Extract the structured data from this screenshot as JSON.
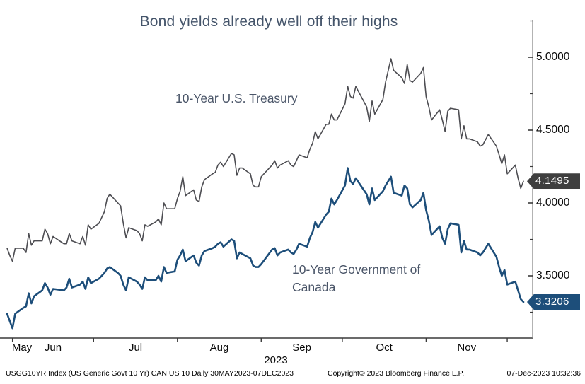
{
  "title": "Bond yields already well off their highs",
  "chart_data": {
    "type": "line",
    "title": "Bond yields already well off their highs",
    "x_range": {
      "start": "30MAY2023",
      "end": "07DEC2023",
      "days": 191
    },
    "xlabel": "2023",
    "ylabel": "",
    "ylim": [
      3.25,
      5.26
    ],
    "grid": false,
    "legend_position": "inline-annotations",
    "y_ticks_major": [
      {
        "value": 5.0,
        "label": "5.0000"
      },
      {
        "value": 4.5,
        "label": "4.5000"
      },
      {
        "value": 4.0,
        "label": "4.0000"
      },
      {
        "value": 3.5,
        "label": "3.5000"
      }
    ],
    "y_ticks_minor": [
      5.25,
      4.75,
      4.25,
      3.75,
      3.25
    ],
    "x_month_tick_days": [
      2,
      32,
      63,
      94,
      124,
      155,
      185
    ],
    "x_month_labels": [
      {
        "label": "May",
        "center_day": 5.5
      },
      {
        "label": "Jun",
        "center_day": 17
      },
      {
        "label": "Jul",
        "center_day": 47.5
      },
      {
        "label": "Aug",
        "center_day": 78.5
      },
      {
        "label": "Sep",
        "center_day": 109
      },
      {
        "label": "Oct",
        "center_day": 139.5
      },
      {
        "label": "Nov",
        "center_day": 170
      }
    ],
    "year_label": "2023",
    "series": [
      {
        "name": "10-Year U.S. Treasury",
        "color": "#4d4d52",
        "width": 1.6,
        "last_value": 4.1495,
        "last_value_label": "4.1495",
        "badge_color": "#3f3f3f",
        "points": [
          [
            0,
            3.69
          ],
          [
            1,
            3.64
          ],
          [
            2,
            3.6
          ],
          [
            3,
            3.69
          ],
          [
            6,
            3.69
          ],
          [
            7,
            3.66
          ],
          [
            8,
            3.79
          ],
          [
            9,
            3.71
          ],
          [
            10,
            3.74
          ],
          [
            13,
            3.74
          ],
          [
            14,
            3.82
          ],
          [
            15,
            3.79
          ],
          [
            16,
            3.72
          ],
          [
            17,
            3.77
          ],
          [
            21,
            3.72
          ],
          [
            22,
            3.72
          ],
          [
            23,
            3.79
          ],
          [
            24,
            3.74
          ],
          [
            27,
            3.72
          ],
          [
            28,
            3.77
          ],
          [
            29,
            3.71
          ],
          [
            30,
            3.85
          ],
          [
            31,
            3.82
          ],
          [
            34,
            3.86
          ],
          [
            36,
            3.94
          ],
          [
            37,
            4.03
          ],
          [
            38,
            4.06
          ],
          [
            41,
            4.0
          ],
          [
            42,
            3.98
          ],
          [
            43,
            3.86
          ],
          [
            44,
            3.76
          ],
          [
            45,
            3.83
          ],
          [
            48,
            3.81
          ],
          [
            49,
            3.79
          ],
          [
            50,
            3.74
          ],
          [
            51,
            3.85
          ],
          [
            52,
            3.84
          ],
          [
            55,
            3.87
          ],
          [
            56,
            3.89
          ],
          [
            57,
            3.85
          ],
          [
            58,
            4.0
          ],
          [
            59,
            3.96
          ],
          [
            62,
            3.96
          ],
          [
            63,
            4.03
          ],
          [
            64,
            4.08
          ],
          [
            65,
            4.18
          ],
          [
            66,
            4.05
          ],
          [
            69,
            4.09
          ],
          [
            70,
            4.02
          ],
          [
            71,
            4.01
          ],
          [
            72,
            4.11
          ],
          [
            73,
            4.16
          ],
          [
            76,
            4.2
          ],
          [
            77,
            4.21
          ],
          [
            78,
            4.26
          ],
          [
            79,
            4.28
          ],
          [
            80,
            4.25
          ],
          [
            83,
            4.34
          ],
          [
            84,
            4.33
          ],
          [
            85,
            4.19
          ],
          [
            86,
            4.24
          ],
          [
            87,
            4.24
          ],
          [
            90,
            4.2
          ],
          [
            91,
            4.12
          ],
          [
            92,
            4.11
          ],
          [
            93,
            4.11
          ],
          [
            94,
            4.18
          ],
          [
            98,
            4.26
          ],
          [
            99,
            4.29
          ],
          [
            100,
            4.24
          ],
          [
            101,
            4.26
          ],
          [
            104,
            4.29
          ],
          [
            105,
            4.26
          ],
          [
            106,
            4.25
          ],
          [
            107,
            4.29
          ],
          [
            108,
            4.33
          ],
          [
            111,
            4.31
          ],
          [
            112,
            4.37
          ],
          [
            113,
            4.41
          ],
          [
            114,
            4.49
          ],
          [
            115,
            4.44
          ],
          [
            118,
            4.54
          ],
          [
            119,
            4.54
          ],
          [
            120,
            4.61
          ],
          [
            121,
            4.57
          ],
          [
            122,
            4.57
          ],
          [
            125,
            4.68
          ],
          [
            126,
            4.8
          ],
          [
            127,
            4.73
          ],
          [
            128,
            4.72
          ],
          [
            129,
            4.8
          ],
          [
            133,
            4.66
          ],
          [
            134,
            4.56
          ],
          [
            135,
            4.7
          ],
          [
            136,
            4.61
          ],
          [
            139,
            4.71
          ],
          [
            140,
            4.83
          ],
          [
            141,
            4.91
          ],
          [
            142,
            4.99
          ],
          [
            143,
            4.91
          ],
          [
            146,
            4.86
          ],
          [
            147,
            4.82
          ],
          [
            148,
            4.95
          ],
          [
            149,
            4.84
          ],
          [
            150,
            4.83
          ],
          [
            153,
            4.89
          ],
          [
            154,
            4.93
          ],
          [
            155,
            4.73
          ],
          [
            156,
            4.66
          ],
          [
            157,
            4.57
          ],
          [
            160,
            4.64
          ],
          [
            161,
            4.57
          ],
          [
            162,
            4.49
          ],
          [
            163,
            4.63
          ],
          [
            164,
            4.65
          ],
          [
            167,
            4.64
          ],
          [
            168,
            4.44
          ],
          [
            169,
            4.53
          ],
          [
            170,
            4.44
          ],
          [
            171,
            4.44
          ],
          [
            174,
            4.42
          ],
          [
            175,
            4.39
          ],
          [
            176,
            4.4
          ],
          [
            178,
            4.47
          ],
          [
            181,
            4.39
          ],
          [
            182,
            4.33
          ],
          [
            183,
            4.27
          ],
          [
            184,
            4.33
          ],
          [
            185,
            4.2
          ],
          [
            188,
            4.26
          ],
          [
            189,
            4.17
          ],
          [
            190,
            4.1
          ],
          [
            191,
            4.1495
          ]
        ]
      },
      {
        "name": "10-Year Government of Canada",
        "color": "#1d4e7a",
        "width": 2.6,
        "last_value": 3.3206,
        "last_value_label": "3.3206",
        "badge_color": "#1d4e7a",
        "points": [
          [
            0,
            3.24
          ],
          [
            1,
            3.19
          ],
          [
            2,
            3.14
          ],
          [
            3,
            3.24
          ],
          [
            6,
            3.28
          ],
          [
            7,
            3.29
          ],
          [
            8,
            3.38
          ],
          [
            9,
            3.31
          ],
          [
            10,
            3.36
          ],
          [
            13,
            3.4
          ],
          [
            14,
            3.45
          ],
          [
            15,
            3.42
          ],
          [
            16,
            3.37
          ],
          [
            17,
            3.41
          ],
          [
            21,
            3.4
          ],
          [
            22,
            3.42
          ],
          [
            23,
            3.48
          ],
          [
            24,
            3.42
          ],
          [
            27,
            3.44
          ],
          [
            28,
            3.46
          ],
          [
            29,
            3.41
          ],
          [
            30,
            3.49
          ],
          [
            31,
            3.45
          ],
          [
            34,
            3.48
          ],
          [
            36,
            3.52
          ],
          [
            37,
            3.55
          ],
          [
            38,
            3.56
          ],
          [
            41,
            3.52
          ],
          [
            42,
            3.5
          ],
          [
            43,
            3.44
          ],
          [
            44,
            3.4
          ],
          [
            45,
            3.49
          ],
          [
            48,
            3.46
          ],
          [
            49,
            3.44
          ],
          [
            50,
            3.41
          ],
          [
            51,
            3.49
          ],
          [
            52,
            3.47
          ],
          [
            55,
            3.47
          ],
          [
            56,
            3.5
          ],
          [
            57,
            3.46
          ],
          [
            58,
            3.56
          ],
          [
            59,
            3.52
          ],
          [
            62,
            3.53
          ],
          [
            63,
            3.61
          ],
          [
            64,
            3.64
          ],
          [
            65,
            3.68
          ],
          [
            66,
            3.6
          ],
          [
            69,
            3.64
          ],
          [
            70,
            3.59
          ],
          [
            71,
            3.57
          ],
          [
            72,
            3.64
          ],
          [
            73,
            3.67
          ],
          [
            76,
            3.69
          ],
          [
            77,
            3.7
          ],
          [
            78,
            3.72
          ],
          [
            79,
            3.73
          ],
          [
            80,
            3.7
          ],
          [
            83,
            3.75
          ],
          [
            84,
            3.74
          ],
          [
            85,
            3.62
          ],
          [
            86,
            3.66
          ],
          [
            87,
            3.65
          ],
          [
            90,
            3.62
          ],
          [
            91,
            3.57
          ],
          [
            92,
            3.56
          ],
          [
            93,
            3.56
          ],
          [
            94,
            3.58
          ],
          [
            98,
            3.68
          ],
          [
            99,
            3.69
          ],
          [
            100,
            3.64
          ],
          [
            101,
            3.66
          ],
          [
            104,
            3.68
          ],
          [
            105,
            3.66
          ],
          [
            106,
            3.65
          ],
          [
            107,
            3.68
          ],
          [
            108,
            3.72
          ],
          [
            111,
            3.7
          ],
          [
            112,
            3.76
          ],
          [
            113,
            3.8
          ],
          [
            114,
            3.87
          ],
          [
            115,
            3.83
          ],
          [
            118,
            3.92
          ],
          [
            119,
            3.94
          ],
          [
            120,
            4.03
          ],
          [
            121,
            3.99
          ],
          [
            122,
            4.02
          ],
          [
            125,
            4.12
          ],
          [
            126,
            4.24
          ],
          [
            127,
            4.15
          ],
          [
            128,
            4.13
          ],
          [
            129,
            4.17
          ],
          [
            133,
            4.06
          ],
          [
            134,
            3.99
          ],
          [
            135,
            4.1
          ],
          [
            136,
            4.02
          ],
          [
            139,
            4.08
          ],
          [
            140,
            4.12
          ],
          [
            141,
            4.15
          ],
          [
            142,
            4.18
          ],
          [
            143,
            4.07
          ],
          [
            146,
            4.05
          ],
          [
            147,
            4.12
          ],
          [
            148,
            4.1
          ],
          [
            149,
            3.99
          ],
          [
            150,
            3.97
          ],
          [
            153,
            4.02
          ],
          [
            154,
            4.07
          ],
          [
            155,
            3.95
          ],
          [
            156,
            3.88
          ],
          [
            157,
            3.78
          ],
          [
            160,
            3.84
          ],
          [
            161,
            3.76
          ],
          [
            162,
            3.72
          ],
          [
            163,
            3.82
          ],
          [
            164,
            3.86
          ],
          [
            167,
            3.85
          ],
          [
            168,
            3.66
          ],
          [
            169,
            3.74
          ],
          [
            170,
            3.68
          ],
          [
            171,
            3.68
          ],
          [
            174,
            3.66
          ],
          [
            175,
            3.64
          ],
          [
            176,
            3.66
          ],
          [
            178,
            3.72
          ],
          [
            181,
            3.63
          ],
          [
            182,
            3.56
          ],
          [
            183,
            3.5
          ],
          [
            184,
            3.54
          ],
          [
            185,
            3.44
          ],
          [
            188,
            3.46
          ],
          [
            189,
            3.4
          ],
          [
            190,
            3.34
          ],
          [
            191,
            3.3206
          ]
        ]
      }
    ],
    "annotations": [
      {
        "line1": "10-Year U.S. Treasury",
        "line2": ""
      },
      {
        "line1": "10-Year Government of",
        "line2": "Canada"
      }
    ],
    "axis_color": "#3a3a3a",
    "right_axis_line_color": "#8a8a8a"
  },
  "footer": {
    "left": "USGG10YR Index (US Generic Govt 10 Yr) CAN US 10  Daily 30MAY2023-07DEC2023",
    "copyright": "Copyright© 2023 Bloomberg Finance L.P.",
    "timestamp": "07-Dec-2023 10:32:36"
  }
}
